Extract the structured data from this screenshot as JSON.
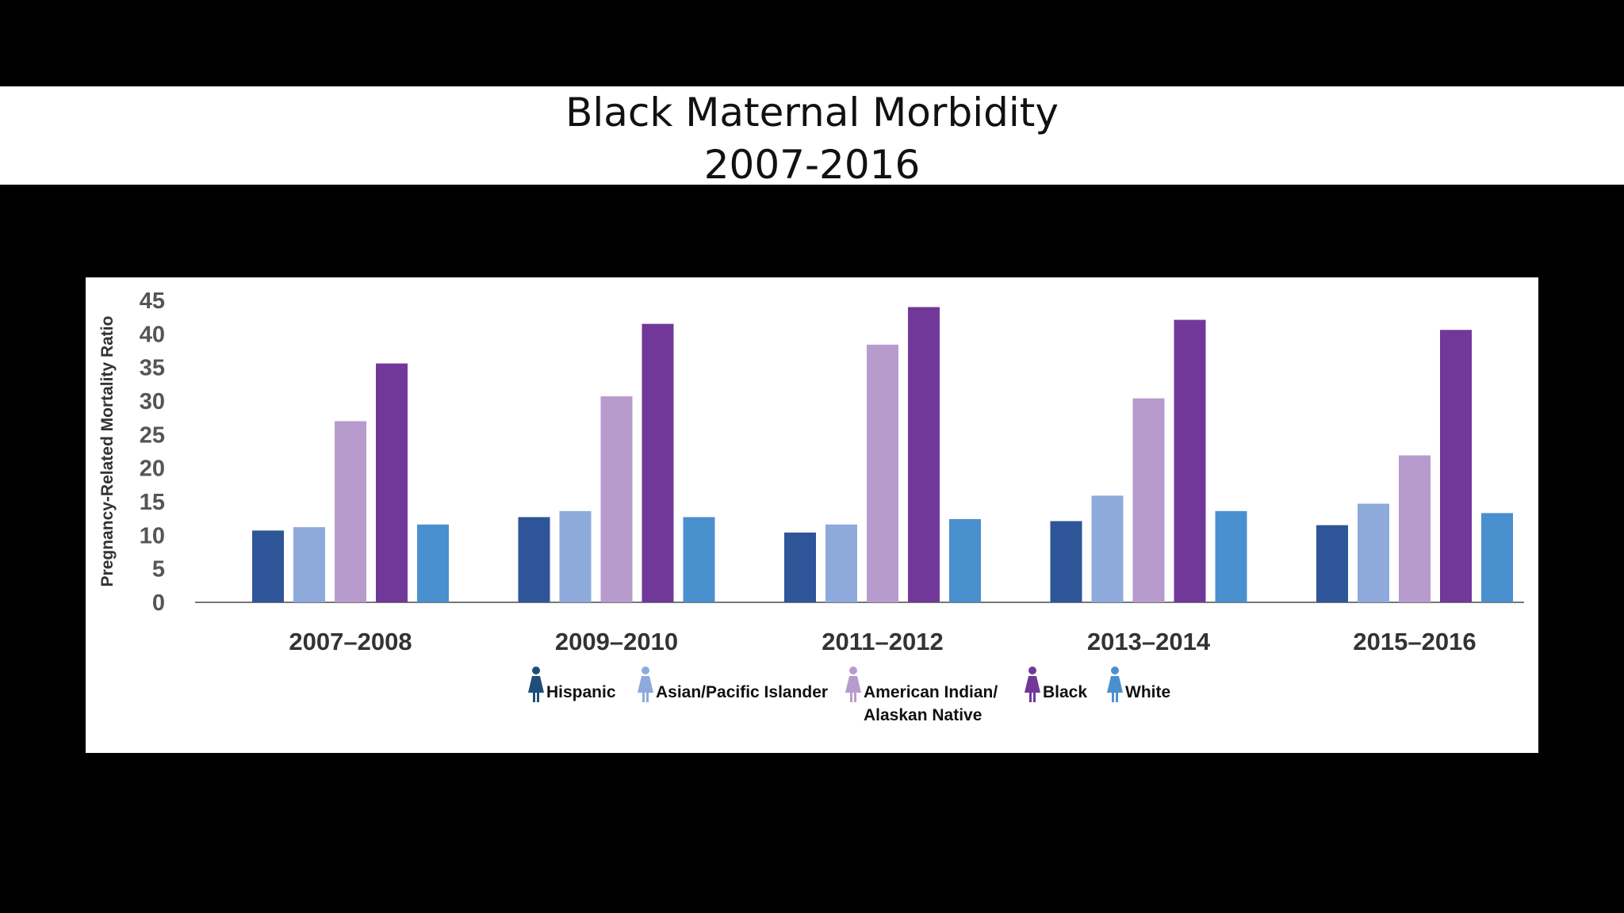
{
  "header": {
    "title": "Black Maternal Morbidity",
    "subtitle": "2007-2016"
  },
  "chart_data": {
    "type": "bar",
    "ylabel": "Pregnancy-Related Mortality Ratio",
    "xlabel": "",
    "ylim": [
      0,
      45
    ],
    "yticks": [
      0,
      5,
      10,
      15,
      20,
      25,
      30,
      35,
      40,
      45
    ],
    "grid": false,
    "legend_position": "bottom",
    "categories": [
      "2007–2008",
      "2009–2010",
      "2011–2012",
      "2013–2014",
      "2015–2016"
    ],
    "series": [
      {
        "name": "Hispanic",
        "color": "#2e5597",
        "values": [
          10.7,
          12.7,
          10.4,
          12.1,
          11.5
        ]
      },
      {
        "name": "Asian/Pacific Islander",
        "color": "#8eaadb",
        "values": [
          11.2,
          13.6,
          11.6,
          15.9,
          14.7
        ]
      },
      {
        "name": "American Indian/ Alaskan Native",
        "legend_lines": [
          "American Indian/",
          "Alaskan Native"
        ],
        "color": "#b79bcd",
        "values": [
          27.0,
          30.7,
          38.4,
          30.4,
          21.9
        ]
      },
      {
        "name": "Black",
        "color": "#71389a",
        "values": [
          35.6,
          41.5,
          44.0,
          42.1,
          40.6
        ]
      },
      {
        "name": "White",
        "color": "#4a90cf",
        "values": [
          11.6,
          12.7,
          12.4,
          13.6,
          13.3
        ]
      }
    ],
    "colors": {
      "axis": "#777777",
      "legend_icon_hispanic": "#1e4e79"
    },
    "legend_icon": "woman-figure-icon"
  }
}
